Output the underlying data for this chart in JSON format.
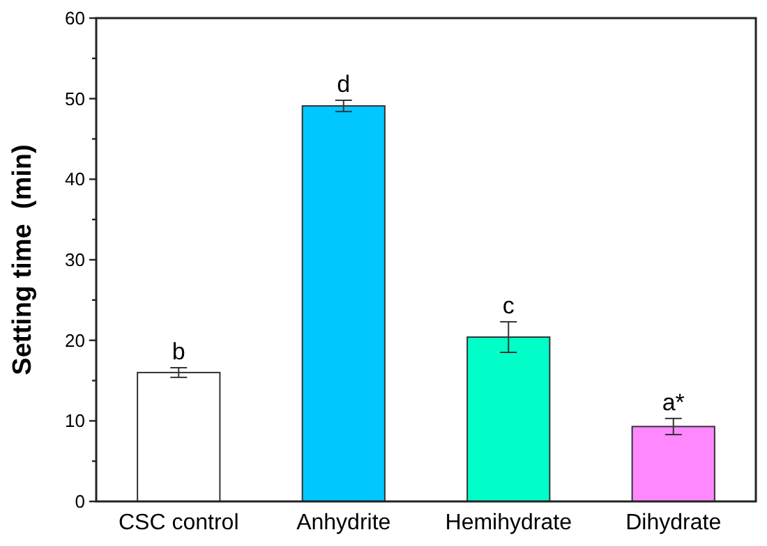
{
  "chart_data": {
    "type": "bar",
    "ylabel": "Setting time  (min)",
    "categories": [
      "CSC control",
      "Anhydrite",
      "Hemihydrate",
      "Dihydrate"
    ],
    "values": [
      16.0,
      49.1,
      20.4,
      9.3
    ],
    "errors": [
      0.6,
      0.7,
      1.9,
      1.0
    ],
    "colors": [
      "#ffffff",
      "#00c8ff",
      "#00ffc8",
      "#ff88ff"
    ],
    "ylim": [
      0,
      60
    ],
    "yticks": [
      0,
      {
        "value": 5,
        "label": null
      },
      10,
      {
        "value": 15,
        "label": null
      },
      20,
      {
        "value": 25,
        "label": null
      },
      30,
      {
        "value": 35,
        "label": null
      },
      40,
      {
        "value": 45,
        "label": null
      },
      50,
      {
        "value": 55,
        "label": null
      },
      60
    ],
    "annotations": [
      {
        "text": "b",
        "x": "CSC control",
        "y": 16.6
      },
      {
        "text": "d",
        "x": "Anhydrite",
        "y": 49.8
      },
      {
        "text": "c",
        "x": "Hemihydrate",
        "y": 22.3
      },
      {
        "text": "a*",
        "x": "Dihydrate",
        "y": 10.3
      }
    ],
    "grid": false
  }
}
